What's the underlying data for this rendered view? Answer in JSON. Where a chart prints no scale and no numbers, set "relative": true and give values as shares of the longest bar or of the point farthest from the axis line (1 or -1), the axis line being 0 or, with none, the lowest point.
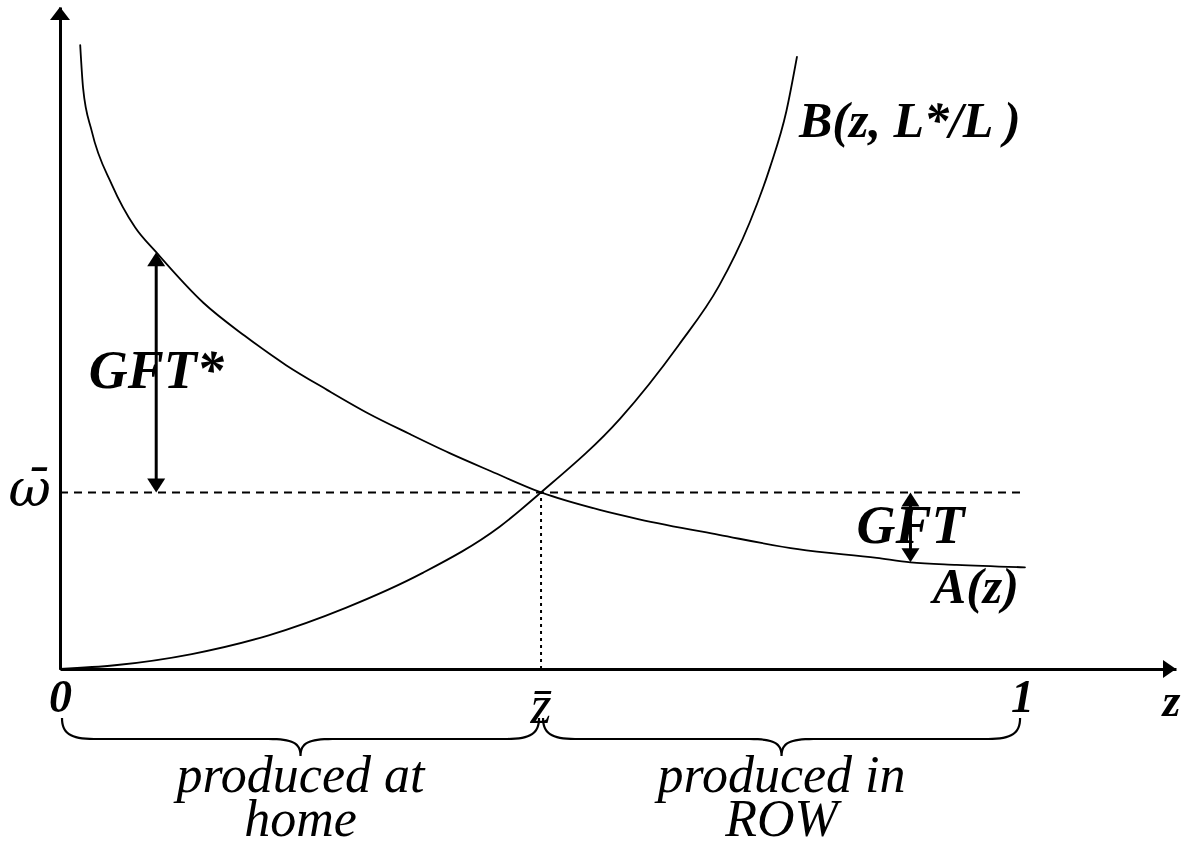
{
  "chart_data": {
    "type": "line",
    "relative": true,
    "xlabel": "z",
    "xlim": [
      0,
      1.16
    ],
    "xticks": [
      0,
      1
    ],
    "series": [
      {
        "name": "A(z)",
        "color": "#000000",
        "x": [
          0.021,
          0.024,
          0.033,
          0.054,
          0.078,
          0.1,
          0.149,
          0.192,
          0.235,
          0.278,
          0.32,
          0.363,
          0.405,
          0.448,
          0.5,
          0.561,
          0.602,
          0.685,
          0.767,
          0.849,
          0.884,
          0.932,
          1.003
        ],
        "values": [
          1,
          0.931,
          0.862,
          0.776,
          0.708,
          0.668,
          0.587,
          0.534,
          0.487,
          0.447,
          0.41,
          0.377,
          0.346,
          0.317,
          0.283,
          0.255,
          0.24,
          0.215,
          0.192,
          0.178,
          0.171,
          0.167,
          0.163
        ]
      },
      {
        "name": "B(z, L*/L )",
        "color": "#000000",
        "x": [
          0,
          0.057,
          0.137,
          0.217,
          0.297,
          0.377,
          0.457,
          0.5,
          0.582,
          0.643,
          0.685,
          0.717,
          0.738,
          0.755,
          0.766
        ],
        "values": [
          0,
          0.006,
          0.024,
          0.054,
          0.098,
          0.154,
          0.228,
          0.283,
          0.401,
          0.519,
          0.614,
          0.716,
          0.804,
          0.894,
          0.981
        ]
      }
    ],
    "ref_lines": [
      {
        "axis": "y",
        "value": 0.283,
        "label": "ω̄",
        "line_style": "dashed"
      },
      {
        "axis": "x",
        "value": 0.5,
        "label": "z̄",
        "line_style": "dotted"
      }
    ],
    "annotations": [
      {
        "text": "GFT*",
        "x": 0.1,
        "y": 0.668
      },
      {
        "text": "GFT",
        "x": 0.884,
        "y": 0.171
      },
      "produced at home",
      "produced in ROW"
    ]
  }
}
